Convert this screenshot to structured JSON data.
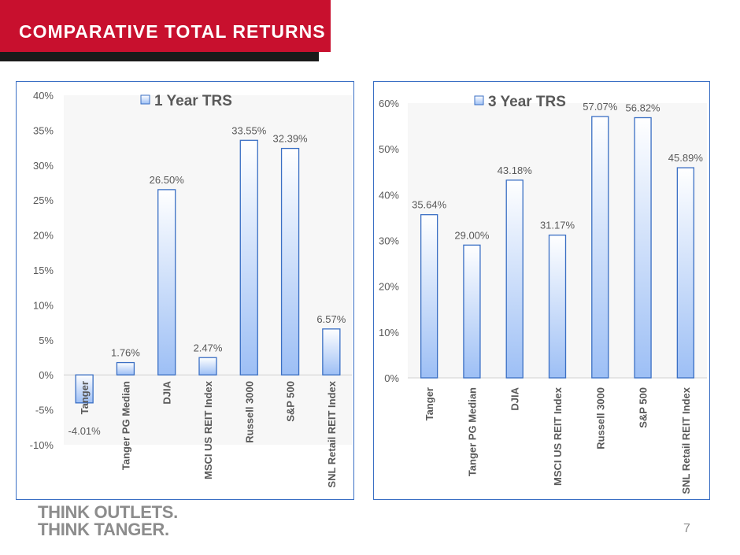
{
  "header": {
    "title": "COMPARATIVE TOTAL RETURNS"
  },
  "footer": {
    "logo_line1": "THINK OUTLETS.",
    "logo_line2": "THINK TANGER.",
    "page_number": "7"
  },
  "colors": {
    "brand_red": "#c8102e",
    "bar_fill_top": "#ffffff",
    "bar_fill_bottom": "#9dbff5",
    "bar_border": "#3a6fc4",
    "text_gray": "#595959"
  },
  "chart_data": [
    {
      "type": "bar",
      "categories": [
        "Tanger",
        "Tanger PG Median",
        "DJIA",
        "MSCI US REIT Index",
        "Russell 3000",
        "S&P 500",
        "SNL Retail REIT Index"
      ],
      "series": [
        {
          "name": "1 Year TRS",
          "values": [
            -4.01,
            1.76,
            26.5,
            2.47,
            33.55,
            32.39,
            6.57
          ]
        }
      ],
      "data_labels": [
        "-4.01%",
        "1.76%",
        "26.50%",
        "2.47%",
        "33.55%",
        "32.39%",
        "6.57%"
      ],
      "ylim": [
        -10,
        40
      ],
      "yticks": [
        "40%",
        "35%",
        "30%",
        "25%",
        "20%",
        "15%",
        "10%",
        "5%",
        "0%",
        "-5%",
        "-10%"
      ],
      "legend_position": "top-center",
      "grid": false
    },
    {
      "type": "bar",
      "categories": [
        "Tanger",
        "Tanger PG Median",
        "DJIA",
        "MSCI US REIT Index",
        "Russell 3000",
        "S&P 500",
        "SNL Retail REIT Index"
      ],
      "series": [
        {
          "name": "3 Year TRS",
          "values": [
            35.64,
            29.0,
            43.18,
            31.17,
            57.07,
            56.82,
            45.89
          ]
        }
      ],
      "data_labels": [
        "35.64%",
        "29.00%",
        "43.18%",
        "31.17%",
        "57.07%",
        "56.82%",
        "45.89%"
      ],
      "ylim": [
        0,
        60
      ],
      "yticks": [
        "60%",
        "50%",
        "40%",
        "30%",
        "20%",
        "10%",
        "0%"
      ],
      "legend_position": "top-center",
      "grid": false
    }
  ]
}
